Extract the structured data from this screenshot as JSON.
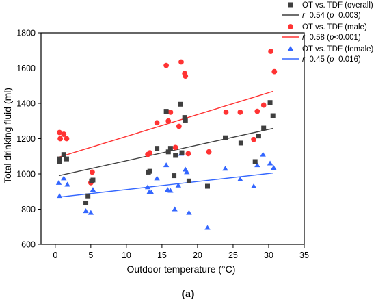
{
  "chart_data": {
    "type": "scatter",
    "xlabel": "Outdoor temperature (°C)",
    "ylabel": "Total drinking fluid (ml)",
    "xlim": [
      -2,
      35
    ],
    "ylim": [
      600,
      1800
    ],
    "xticks": [
      0,
      5,
      10,
      15,
      20,
      25,
      30,
      35
    ],
    "yticks": [
      600,
      800,
      1000,
      1200,
      1400,
      1600,
      1800
    ],
    "xtick_labels": [
      "0",
      "5",
      "10",
      "15",
      "20",
      "25",
      "30",
      "35"
    ],
    "ytick_labels": [
      "600",
      "800",
      "1000",
      "1200",
      "1400",
      "1600",
      "1800"
    ],
    "caption": "(a)",
    "legend_position": "top-right",
    "series": [
      {
        "name": "OT vs. TDF (overall)",
        "marker": "square",
        "color": "#3f3f3f",
        "fit_label": "r=0.54 (p=0.003)",
        "fit": [
          [
            0.5,
            990
          ],
          [
            30.6,
            1258
          ]
        ],
        "points": [
          [
            0.6,
            1085
          ],
          [
            0.6,
            1070
          ],
          [
            1.2,
            1110
          ],
          [
            1.6,
            1085
          ],
          [
            4.3,
            835
          ],
          [
            4.6,
            875
          ],
          [
            5.1,
            960
          ],
          [
            5.3,
            965
          ],
          [
            13.1,
            1010
          ],
          [
            13.3,
            1015
          ],
          [
            14.3,
            1145
          ],
          [
            15.6,
            1355
          ],
          [
            15.9,
            1125
          ],
          [
            16.2,
            1145
          ],
          [
            16.9,
            1105
          ],
          [
            17.6,
            1395
          ],
          [
            17.8,
            1120
          ],
          [
            18.2,
            1320
          ],
          [
            18.3,
            1305
          ],
          [
            18.8,
            960
          ],
          [
            16.7,
            990
          ],
          [
            21.4,
            930
          ],
          [
            23.9,
            1205
          ],
          [
            26.1,
            1175
          ],
          [
            28.1,
            1070
          ],
          [
            28.6,
            1215
          ],
          [
            29.3,
            1260
          ],
          [
            30.2,
            1405
          ],
          [
            30.6,
            1330
          ]
        ]
      },
      {
        "name": "OT vs. TDF (male)",
        "marker": "circle",
        "color": "#ff3333",
        "fit_label": "r=0.58 (p<0.001)",
        "fit": [
          [
            0.5,
            1095
          ],
          [
            30.6,
            1468
          ]
        ],
        "points": [
          [
            0.6,
            1235
          ],
          [
            0.7,
            1200
          ],
          [
            1.2,
            1225
          ],
          [
            1.6,
            1200
          ],
          [
            5.2,
            1010
          ],
          [
            5.0,
            950
          ],
          [
            13.0,
            1110
          ],
          [
            13.3,
            1120
          ],
          [
            14.3,
            1290
          ],
          [
            15.6,
            1615
          ],
          [
            15.9,
            1300
          ],
          [
            16.2,
            1350
          ],
          [
            16.9,
            1150
          ],
          [
            17.4,
            1270
          ],
          [
            17.7,
            1635
          ],
          [
            18.2,
            1570
          ],
          [
            18.3,
            1555
          ],
          [
            18.7,
            1115
          ],
          [
            21.6,
            1125
          ],
          [
            24.0,
            1350
          ],
          [
            26.0,
            1350
          ],
          [
            27.9,
            1195
          ],
          [
            28.4,
            1355
          ],
          [
            29.3,
            1390
          ],
          [
            30.3,
            1695
          ],
          [
            30.8,
            1580
          ]
        ]
      },
      {
        "name": "OT vs. TDF (female)",
        "marker": "triangle",
        "color": "#3366ff",
        "fit_label": "r=0.45 (p=0.016)",
        "fit": [
          [
            0.5,
            868
          ],
          [
            30.6,
            1005
          ]
        ],
        "points": [
          [
            0.5,
            950
          ],
          [
            0.6,
            875
          ],
          [
            1.2,
            975
          ],
          [
            1.7,
            940
          ],
          [
            4.3,
            790
          ],
          [
            5.0,
            780
          ],
          [
            5.3,
            910
          ],
          [
            13.0,
            925
          ],
          [
            13.2,
            895
          ],
          [
            13.5,
            895
          ],
          [
            14.3,
            975
          ],
          [
            15.6,
            1050
          ],
          [
            15.8,
            910
          ],
          [
            16.2,
            905
          ],
          [
            16.8,
            800
          ],
          [
            17.3,
            935
          ],
          [
            17.7,
            1115
          ],
          [
            18.3,
            1025
          ],
          [
            18.5,
            1010
          ],
          [
            18.8,
            780
          ],
          [
            21.4,
            695
          ],
          [
            23.9,
            1030
          ],
          [
            26.0,
            970
          ],
          [
            27.9,
            930
          ],
          [
            28.4,
            1050
          ],
          [
            29.2,
            1110
          ],
          [
            30.2,
            1060
          ],
          [
            30.7,
            1035
          ]
        ]
      }
    ]
  }
}
